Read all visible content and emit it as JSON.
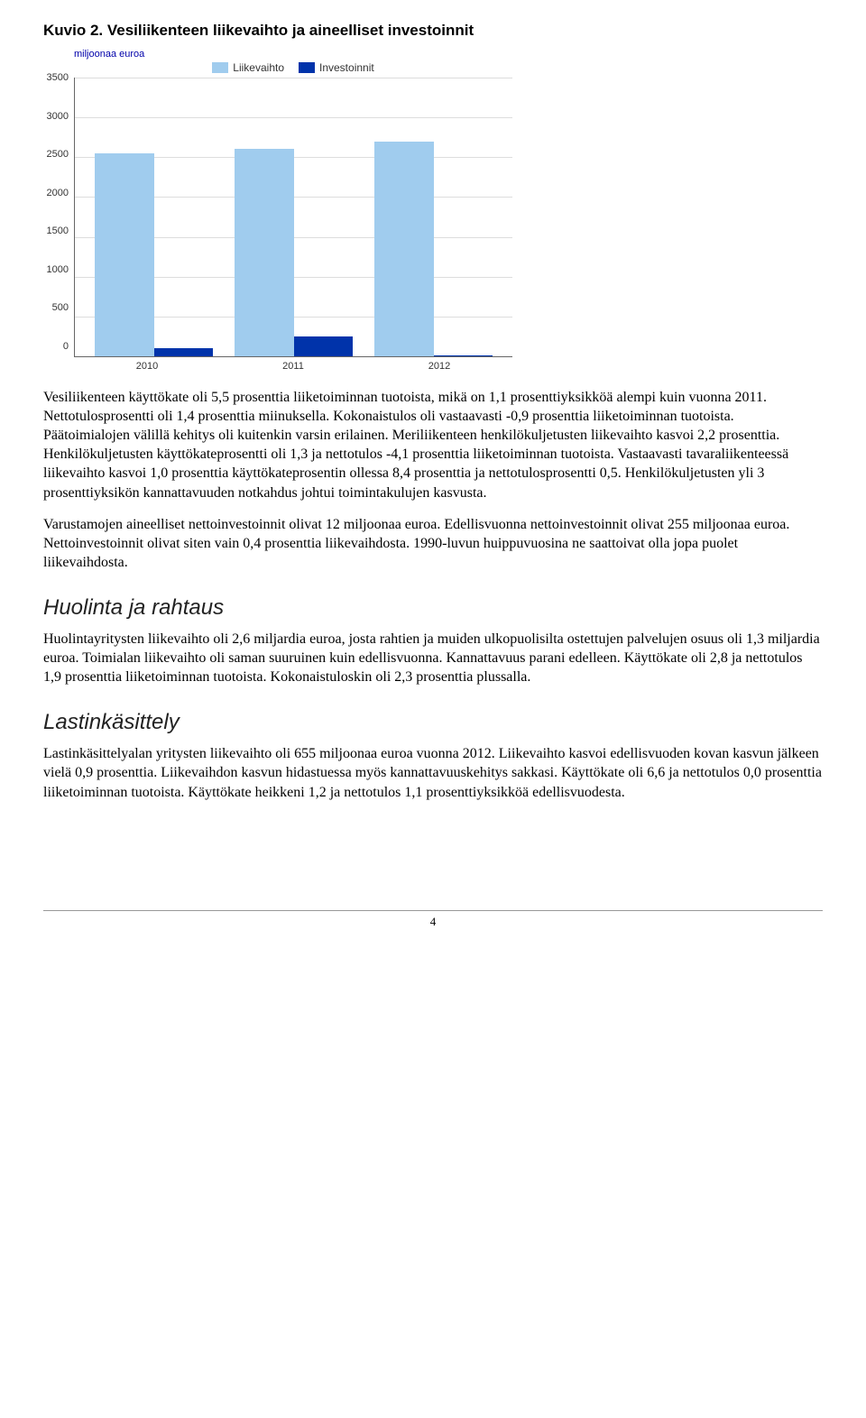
{
  "figure": {
    "title": "Kuvio 2. Vesiliikenteen liikevaihto ja aineelliset investoinnit",
    "axis_title": "miljoonaa euroa",
    "legend": {
      "series1": "Liikevaihto",
      "series2": "Investoinnit"
    },
    "colors": {
      "series1": "#a0ccee",
      "series2": "#0033aa",
      "grid": "#dddddd",
      "axis": "#666666",
      "bg": "#ffffff"
    },
    "ylim": [
      0,
      3500
    ],
    "ytick_step": 500,
    "ytick_labels": [
      "3500",
      "3000",
      "2500",
      "2000",
      "1500",
      "1000",
      "500",
      "0"
    ],
    "categories": [
      "2010",
      "2011",
      "2012"
    ],
    "series1_values": [
      2550,
      2600,
      2700
    ],
    "series2_values": [
      100,
      255,
      12
    ]
  },
  "paragraphs": {
    "p1": "Vesiliikenteen käyttökate oli 5,5 prosenttia liiketoiminnan tuotoista, mikä on 1,1 prosenttiyksikköä alempi kuin vuonna 2011. Nettotulosprosentti oli 1,4 prosenttia miinuksella. Kokonaistulos oli vastaavasti -0,9 prosenttia liiketoiminnan tuotoista. Päätoimialojen välillä kehitys oli kuitenkin varsin erilainen. Meriliikenteen henkilökuljetusten liikevaihto kasvoi 2,2 prosenttia. Henkilökuljetusten käyttökateprosentti oli 1,3 ja nettotulos -4,1 prosenttia liiketoiminnan tuotoista. Vastaavasti tavaraliikenteessä liikevaihto kasvoi 1,0 prosenttia käyttökateprosentin ollessa 8,4 prosenttia ja nettotulosprosentti 0,5. Henkilökuljetusten yli 3 prosenttiyksikön kannattavuuden notkahdus johtui toimintakulujen kasvusta.",
    "p2": "Varustamojen aineelliset nettoinvestoinnit olivat 12 miljoonaa euroa. Edellisvuonna nettoinvestoinnit olivat 255 miljoonaa euroa. Nettoinvestoinnit olivat siten vain 0,4 prosenttia liikevaihdosta. 1990-luvun huippuvuosina ne saattoivat olla jopa puolet liikevaihdosta."
  },
  "sections": {
    "s1": {
      "heading": "Huolinta ja rahtaus",
      "body": "Huolintayritysten liikevaihto oli 2,6 miljardia euroa, josta rahtien ja muiden ulkopuolisilta ostettujen palvelujen osuus oli 1,3 miljardia euroa. Toimialan liikevaihto oli saman suuruinen kuin edellisvuonna. Kannattavuus parani edelleen. Käyttökate oli 2,8 ja nettotulos 1,9 prosenttia liiketoiminnan tuotoista. Kokonaistuloskin oli 2,3 prosenttia plussalla."
    },
    "s2": {
      "heading": "Lastinkäsittely",
      "body": "Lastinkäsittelyalan yritysten liikevaihto oli 655 miljoonaa euroa vuonna 2012. Liikevaihto kasvoi edellisvuoden kovan kasvun jälkeen vielä 0,9 prosenttia. Liikevaihdon kasvun hidastuessa myös kannattavuuskehitys sakkasi. Käyttökate oli 6,6 ja nettotulos 0,0 prosenttia liiketoiminnan tuotoista. Käyttökate heikkeni 1,2 ja nettotulos 1,1 prosenttiyksikköä edellisvuodesta."
    }
  },
  "page_number": "4"
}
